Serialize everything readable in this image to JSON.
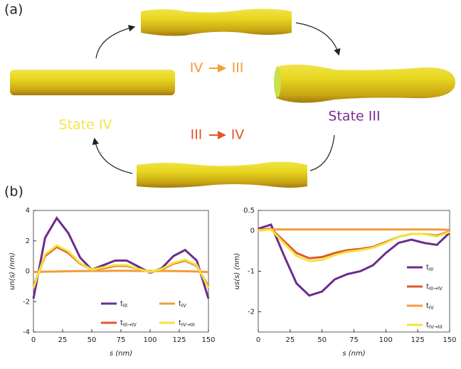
{
  "panel_a": {
    "label": "(a)",
    "state_iv": "State IV",
    "state_iii": "State III",
    "forward": {
      "from": "IV",
      "to": "III"
    },
    "backward": {
      "from": "III",
      "to": "IV"
    }
  },
  "panel_b": {
    "label": "(b)"
  },
  "chart_data": [
    {
      "type": "line",
      "ylabel": "un(s) (nm)",
      "xlabel": "s (nm)",
      "xlim": [
        0,
        150
      ],
      "xticks": [
        0,
        25,
        50,
        75,
        100,
        125,
        150
      ],
      "ylim": [
        -4,
        4
      ],
      "yticks": [
        -4,
        -2,
        0,
        2,
        4
      ],
      "legend": "lower right",
      "legend_columns": 2,
      "x": [
        0,
        10,
        20,
        30,
        40,
        50,
        60,
        70,
        80,
        90,
        100,
        110,
        120,
        130,
        140,
        150
      ],
      "series": [
        {
          "name": "tIII",
          "color": "#6b2d8f",
          "values": [
            -1.8,
            2.2,
            3.5,
            2.5,
            0.9,
            0.1,
            0.4,
            0.7,
            0.7,
            0.3,
            -0.1,
            0.2,
            1.0,
            1.4,
            0.7,
            -1.8
          ]
        },
        {
          "name": "tIII→IV",
          "color": "#e0582c",
          "values": [
            -1.0,
            1.0,
            1.6,
            1.2,
            0.5,
            0.1,
            0.2,
            0.35,
            0.35,
            0.15,
            -0.05,
            0.1,
            0.5,
            0.7,
            0.35,
            -1.0
          ]
        },
        {
          "name": "tIV",
          "color": "#f39c3a",
          "values": [
            -0.05,
            -0.03,
            -0.02,
            0,
            0.01,
            0.02,
            0.02,
            0.03,
            0.03,
            0.02,
            0.02,
            0.02,
            0.01,
            0,
            -0.02,
            -0.05
          ]
        },
        {
          "name": "tIV→III",
          "color": "#f2e43a",
          "values": [
            -1.1,
            1.1,
            1.7,
            1.3,
            0.55,
            0.1,
            0.25,
            0.4,
            0.4,
            0.15,
            -0.05,
            0.15,
            0.55,
            0.75,
            0.4,
            -1.1
          ]
        }
      ]
    },
    {
      "type": "line",
      "ylabel": "us(s) (nm)",
      "xlabel": "s (nm)",
      "xlim": [
        0,
        150
      ],
      "xticks": [
        0,
        25,
        50,
        75,
        100,
        125,
        150
      ],
      "ylim": [
        -2.5,
        0.5
      ],
      "yticks": [
        -2,
        -1,
        0,
        0.5
      ],
      "legend": "right",
      "legend_columns": 1,
      "x": [
        0,
        10,
        20,
        30,
        40,
        50,
        60,
        70,
        80,
        90,
        100,
        110,
        120,
        130,
        140,
        150
      ],
      "series": [
        {
          "name": "tIII",
          "color": "#6b2d8f",
          "values": [
            0.05,
            0.15,
            -0.6,
            -1.3,
            -1.6,
            -1.5,
            -1.2,
            -1.07,
            -1.0,
            -0.85,
            -0.55,
            -0.3,
            -0.22,
            -0.3,
            -0.35,
            -0.05
          ]
        },
        {
          "name": "tIII→IV",
          "color": "#e0582c",
          "values": [
            0.02,
            0.05,
            -0.25,
            -0.55,
            -0.68,
            -0.65,
            -0.55,
            -0.48,
            -0.45,
            -0.4,
            -0.28,
            -0.15,
            -0.08,
            -0.08,
            -0.12,
            -0.02
          ]
        },
        {
          "name": "tIV",
          "color": "#f39c3a",
          "values": [
            0.02,
            0.03,
            0.03,
            0.03,
            0.03,
            0.03,
            0.03,
            0.03,
            0.03,
            0.03,
            0.03,
            0.03,
            0.03,
            0.03,
            0.03,
            0.02
          ]
        },
        {
          "name": "tIV→III",
          "color": "#f2e43a",
          "values": [
            0.0,
            0.03,
            -0.3,
            -0.62,
            -0.75,
            -0.72,
            -0.6,
            -0.52,
            -0.48,
            -0.42,
            -0.3,
            -0.15,
            -0.08,
            -0.08,
            -0.14,
            -0.03
          ]
        }
      ]
    }
  ]
}
